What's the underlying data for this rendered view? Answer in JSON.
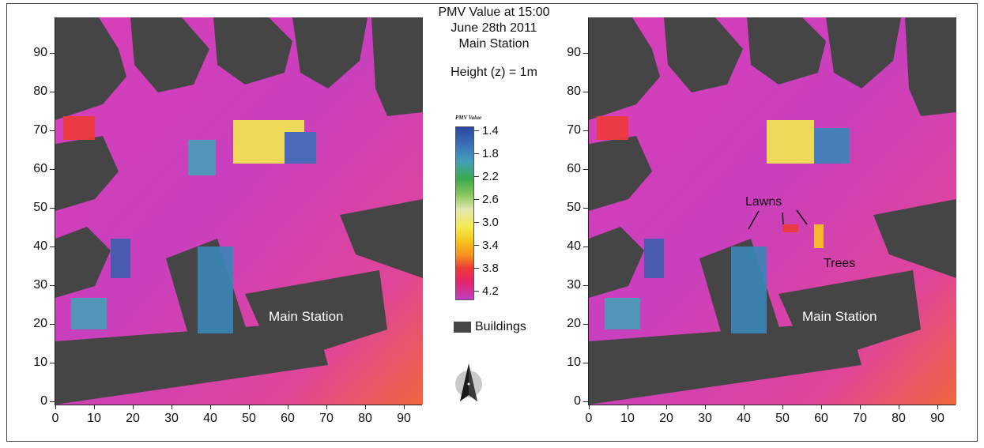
{
  "title": {
    "line1": "PMV Value at 15:00",
    "line2": "June 28th 2011",
    "line3": "Main Station",
    "height": "Height (z) = 1m"
  },
  "legend": {
    "title": "PMV Value",
    "values": [
      "1.4",
      "1.8",
      "2.2",
      "2.6",
      "3.0",
      "3.4",
      "3.8",
      "4.2"
    ],
    "buildings_label": "Buildings",
    "colors": {
      "1.4": "#2847a0",
      "1.8": "#44a0b8",
      "2.2": "#3aa84c",
      "2.6": "#e6e6b0",
      "3.0": "#f3ea4e",
      "3.4": "#f7931d",
      "3.8": "#ee3a37",
      "4.2": "#c23ec3"
    },
    "building_color": "#454545"
  },
  "axes": {
    "x_ticks": [
      "0",
      "10",
      "20",
      "30",
      "40",
      "50",
      "60",
      "70",
      "80",
      "90"
    ],
    "y_ticks": [
      "0",
      "10",
      "20",
      "30",
      "40",
      "50",
      "60",
      "70",
      "80",
      "90"
    ]
  },
  "left_map": {
    "building_label": "Main Station"
  },
  "right_map": {
    "building_label": "Main Station",
    "annotations": {
      "lawns": "Lawns",
      "trees": "Trees"
    }
  },
  "north_arrow": "north-arrow-icon"
}
